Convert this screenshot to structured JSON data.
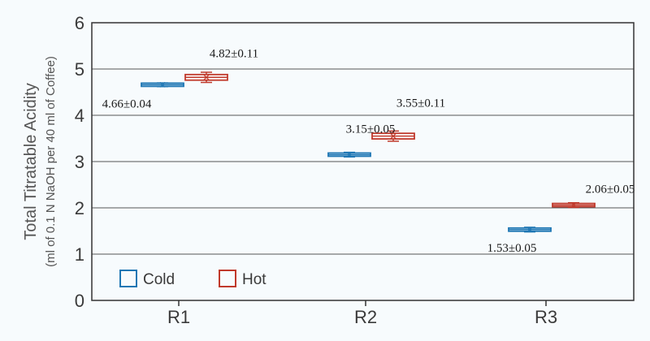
{
  "chart_data": {
    "type": "box",
    "categories": [
      "R1",
      "R2",
      "R3"
    ],
    "ylabel": "Total Titratable Acidity",
    "ylabel_sub": "(ml of 0.1 N NaOH per 40 ml of Coffee)",
    "ylim": [
      0,
      6
    ],
    "yticks": [
      "0",
      "1",
      "2",
      "3",
      "4",
      "5",
      "6"
    ],
    "grid": true,
    "legend_position": "bottom-left",
    "series": [
      {
        "name": "Cold",
        "color": "#1f77b4",
        "values": [
          4.66,
          3.15,
          1.53
        ],
        "sd": [
          0.04,
          0.05,
          0.05
        ],
        "labels": [
          "4.66±0.04",
          "3.15±0.05",
          "1.53±0.05"
        ]
      },
      {
        "name": "Hot",
        "color": "#c0392b",
        "values": [
          4.82,
          3.55,
          2.06
        ],
        "sd": [
          0.11,
          0.11,
          0.05
        ],
        "labels": [
          "4.82±0.11",
          "3.55±0.11",
          "2.06±0.05"
        ]
      }
    ]
  }
}
